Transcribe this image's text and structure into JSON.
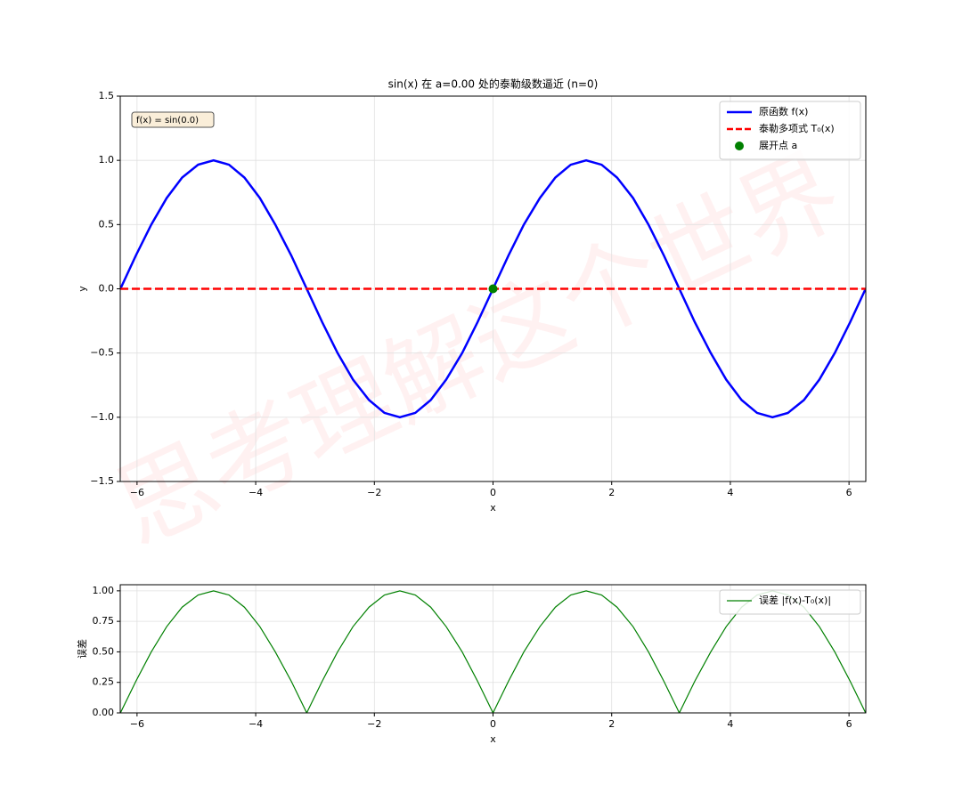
{
  "watermark": "思考理解这个世界",
  "chart_data": [
    {
      "type": "line",
      "title": "sin(x) 在 a=0.00 处的泰勒级数逼近 (n=0)",
      "xlabel": "x",
      "ylabel": "y",
      "annotation": "f(x) = sin(0.0)",
      "grid": true,
      "legend": "upper right",
      "xlim": [
        -6.283,
        6.283
      ],
      "ylim": [
        -1.5,
        1.5
      ],
      "xticks": [
        {
          "value": -6,
          "label": "−6"
        },
        {
          "value": -4,
          "label": "−4"
        },
        {
          "value": -2,
          "label": "−2"
        },
        0,
        2,
        4,
        6
      ],
      "yticks": [
        {
          "value": -1.5,
          "label": "−1.5"
        },
        {
          "value": -1,
          "label": "−1.0"
        },
        {
          "value": -0.5,
          "label": "−0.5"
        },
        {
          "value": 0,
          "label": "0.0"
        },
        {
          "value": 0.5,
          "label": "0.5"
        },
        {
          "value": 1,
          "label": "1.0"
        },
        {
          "value": 1.5,
          "label": "1.5"
        }
      ],
      "series": [
        {
          "name": "原函数 f(x)",
          "color": "#0000ff",
          "linestyle": "solid",
          "x": [
            -6.28,
            -6.02,
            -5.76,
            -5.5,
            -5.24,
            -4.97,
            -4.71,
            -4.45,
            -4.19,
            -3.93,
            -3.67,
            -3.4,
            -3.14,
            -2.88,
            -2.62,
            -2.36,
            -2.09,
            -1.83,
            -1.57,
            -1.31,
            -1.05,
            -0.79,
            -0.52,
            -0.26,
            0,
            0.26,
            0.52,
            0.79,
            1.05,
            1.31,
            1.57,
            1.83,
            2.09,
            2.36,
            2.62,
            2.88,
            3.14,
            3.4,
            3.67,
            3.93,
            4.19,
            4.45,
            4.71,
            4.97,
            5.24,
            5.5,
            5.76,
            6.02,
            6.28
          ],
          "values": [
            0,
            0.259,
            0.5,
            0.707,
            0.866,
            0.966,
            1,
            0.966,
            0.866,
            0.707,
            0.5,
            0.259,
            0,
            -0.259,
            -0.5,
            -0.707,
            -0.866,
            -0.966,
            -1,
            -0.966,
            -0.866,
            -0.707,
            -0.5,
            -0.259,
            0,
            0.259,
            0.5,
            0.707,
            0.866,
            0.966,
            1,
            0.966,
            0.866,
            0.707,
            0.5,
            0.259,
            0,
            -0.259,
            -0.5,
            -0.707,
            -0.866,
            -0.966,
            -1,
            -0.966,
            -0.866,
            -0.707,
            -0.5,
            -0.259,
            0
          ]
        },
        {
          "name": "泰勒多项式 T₀(x)",
          "color": "#ff0000",
          "linestyle": "dashed",
          "x": [
            -6.283,
            6.283
          ],
          "values": [
            0,
            0
          ]
        },
        {
          "name": "展开点 a",
          "color": "#008000",
          "type": "scatter",
          "x": [
            0
          ],
          "values": [
            0
          ]
        }
      ]
    },
    {
      "type": "line",
      "xlabel": "x",
      "ylabel": "误差",
      "grid": true,
      "legend": "upper right",
      "xlim": [
        -6.283,
        6.283
      ],
      "ylim": [
        0,
        1.05
      ],
      "xticks": [
        {
          "value": -6,
          "label": "−6"
        },
        {
          "value": -4,
          "label": "−4"
        },
        {
          "value": -2,
          "label": "−2"
        },
        0,
        2,
        4,
        6
      ],
      "yticks": [
        {
          "value": 0,
          "label": "0.00"
        },
        {
          "value": 0.25,
          "label": "0.25"
        },
        {
          "value": 0.5,
          "label": "0.50"
        },
        {
          "value": 0.75,
          "label": "0.75"
        },
        {
          "value": 1,
          "label": "1.00"
        }
      ],
      "series": [
        {
          "name": "误差 |f(x)-T₀(x)|",
          "color": "#008000",
          "linestyle": "solid",
          "x": [
            -6.28,
            -6.02,
            -5.76,
            -5.5,
            -5.24,
            -4.97,
            -4.71,
            -4.45,
            -4.19,
            -3.93,
            -3.67,
            -3.4,
            -3.14,
            -2.88,
            -2.62,
            -2.36,
            -2.09,
            -1.83,
            -1.57,
            -1.31,
            -1.05,
            -0.79,
            -0.52,
            -0.26,
            0,
            0.26,
            0.52,
            0.79,
            1.05,
            1.31,
            1.57,
            1.83,
            2.09,
            2.36,
            2.62,
            2.88,
            3.14,
            3.4,
            3.67,
            3.93,
            4.19,
            4.45,
            4.71,
            4.97,
            5.24,
            5.5,
            5.76,
            6.02,
            6.28
          ],
          "values": [
            0,
            0.259,
            0.5,
            0.707,
            0.866,
            0.966,
            1,
            0.966,
            0.866,
            0.707,
            0.5,
            0.259,
            0,
            0.259,
            0.5,
            0.707,
            0.866,
            0.966,
            1,
            0.966,
            0.866,
            0.707,
            0.5,
            0.259,
            0,
            0.259,
            0.5,
            0.707,
            0.866,
            0.966,
            1,
            0.966,
            0.866,
            0.707,
            0.5,
            0.259,
            0,
            0.259,
            0.5,
            0.707,
            0.866,
            0.966,
            1,
            0.966,
            0.866,
            0.707,
            0.5,
            0.259,
            0
          ]
        }
      ]
    }
  ]
}
